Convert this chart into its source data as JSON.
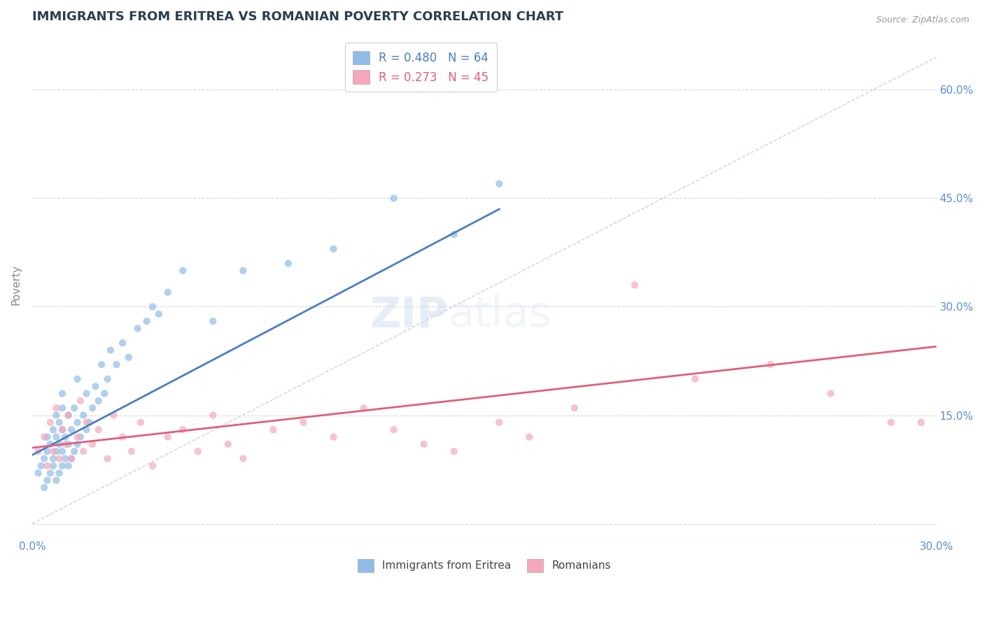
{
  "title": "IMMIGRANTS FROM ERITREA VS ROMANIAN POVERTY CORRELATION CHART",
  "source": "Source: ZipAtlas.com",
  "ylabel": "Poverty",
  "xlim": [
    0.0,
    0.3
  ],
  "ylim": [
    -0.02,
    0.68
  ],
  "yticks": [
    0.0,
    0.15,
    0.3,
    0.45,
    0.6
  ],
  "xticks": [
    0.0,
    0.05,
    0.1,
    0.15,
    0.2,
    0.25,
    0.3
  ],
  "xtick_labels": [
    "0.0%",
    "",
    "",
    "",
    "",
    "",
    "30.0%"
  ],
  "ytick_labels": [
    "",
    "15.0%",
    "30.0%",
    "45.0%",
    "60.0%"
  ],
  "legend1_label": "R = 0.480   N = 64",
  "legend2_label": "R = 0.273   N = 45",
  "legend1_label_series": "Immigrants from Eritrea",
  "legend2_label_series": "Romanians",
  "blue_color": "#90bce8",
  "pink_color": "#f5a8bc",
  "blue_line_color": "#4a7fc1",
  "pink_line_color": "#e0607a",
  "background_color": "#ffffff",
  "grid_color": "#d0d8e8",
  "title_color": "#2c3e50",
  "axis_label_color": "#5b8dd9",
  "watermark_zi": "ZIP",
  "watermark_atlas": "atlas",
  "blue_scatter_x": [
    0.002,
    0.003,
    0.004,
    0.004,
    0.005,
    0.005,
    0.005,
    0.006,
    0.006,
    0.007,
    0.007,
    0.007,
    0.008,
    0.008,
    0.008,
    0.008,
    0.009,
    0.009,
    0.009,
    0.01,
    0.01,
    0.01,
    0.01,
    0.01,
    0.011,
    0.011,
    0.012,
    0.012,
    0.012,
    0.013,
    0.013,
    0.014,
    0.014,
    0.015,
    0.015,
    0.015,
    0.016,
    0.017,
    0.018,
    0.018,
    0.019,
    0.02,
    0.021,
    0.022,
    0.023,
    0.024,
    0.025,
    0.026,
    0.028,
    0.03,
    0.032,
    0.035,
    0.038,
    0.04,
    0.042,
    0.045,
    0.05,
    0.06,
    0.07,
    0.085,
    0.1,
    0.12,
    0.14,
    0.155
  ],
  "blue_scatter_y": [
    0.07,
    0.08,
    0.05,
    0.09,
    0.06,
    0.1,
    0.12,
    0.07,
    0.11,
    0.08,
    0.09,
    0.13,
    0.06,
    0.1,
    0.12,
    0.15,
    0.07,
    0.11,
    0.14,
    0.08,
    0.1,
    0.13,
    0.16,
    0.18,
    0.09,
    0.12,
    0.08,
    0.11,
    0.15,
    0.09,
    0.13,
    0.1,
    0.16,
    0.11,
    0.14,
    0.2,
    0.12,
    0.15,
    0.13,
    0.18,
    0.14,
    0.16,
    0.19,
    0.17,
    0.22,
    0.18,
    0.2,
    0.24,
    0.22,
    0.25,
    0.23,
    0.27,
    0.28,
    0.3,
    0.29,
    0.32,
    0.35,
    0.28,
    0.35,
    0.36,
    0.38,
    0.45,
    0.4,
    0.47
  ],
  "pink_scatter_x": [
    0.002,
    0.004,
    0.005,
    0.006,
    0.007,
    0.008,
    0.009,
    0.01,
    0.011,
    0.012,
    0.013,
    0.015,
    0.016,
    0.017,
    0.018,
    0.02,
    0.022,
    0.025,
    0.027,
    0.03,
    0.033,
    0.036,
    0.04,
    0.045,
    0.05,
    0.055,
    0.06,
    0.065,
    0.07,
    0.08,
    0.09,
    0.1,
    0.11,
    0.12,
    0.13,
    0.14,
    0.155,
    0.165,
    0.18,
    0.2,
    0.22,
    0.245,
    0.265,
    0.285,
    0.295
  ],
  "pink_scatter_y": [
    0.1,
    0.12,
    0.08,
    0.14,
    0.1,
    0.16,
    0.09,
    0.13,
    0.11,
    0.15,
    0.09,
    0.12,
    0.17,
    0.1,
    0.14,
    0.11,
    0.13,
    0.09,
    0.15,
    0.12,
    0.1,
    0.14,
    0.08,
    0.12,
    0.13,
    0.1,
    0.15,
    0.11,
    0.09,
    0.13,
    0.14,
    0.12,
    0.16,
    0.13,
    0.11,
    0.1,
    0.14,
    0.12,
    0.16,
    0.33,
    0.2,
    0.22,
    0.18,
    0.14,
    0.14
  ],
  "blue_trend_x": [
    0.0,
    0.155
  ],
  "blue_trend_y": [
    0.095,
    0.435
  ],
  "pink_trend_x": [
    0.0,
    0.3
  ],
  "pink_trend_y": [
    0.105,
    0.245
  ],
  "diag_line_x": [
    0.0,
    0.3
  ],
  "diag_line_y": [
    0.0,
    0.645
  ]
}
